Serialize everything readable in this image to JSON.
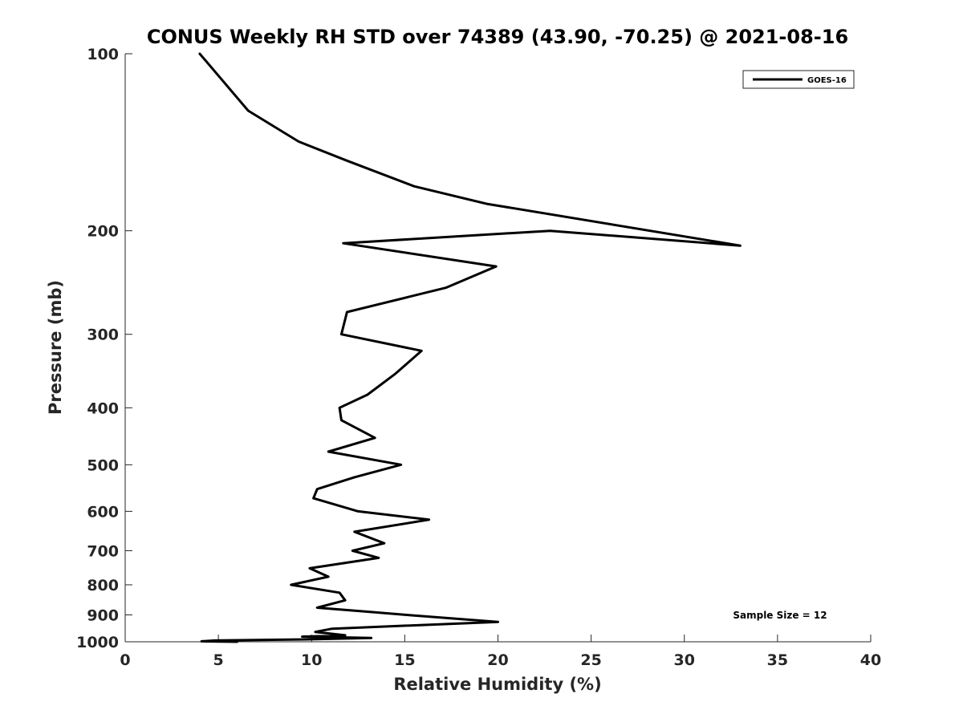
{
  "chart_data": {
    "type": "line",
    "title": "CONUS Weekly RH STD over 74389 (43.90, -70.25) @ 2021-08-16",
    "xlabel": "Relative Humidity (%)",
    "ylabel": "Pressure (mb)",
    "xlim": [
      0,
      40
    ],
    "ylim": [
      100,
      1000
    ],
    "y_scale": "log",
    "y_reversed": true,
    "x_ticks": [
      "0",
      "5",
      "10",
      "15",
      "20",
      "25",
      "30",
      "35",
      "40"
    ],
    "y_ticks": [
      "100",
      "200",
      "300",
      "400",
      "500",
      "600",
      "700",
      "800",
      "900",
      "1000"
    ],
    "grid": false,
    "legend_position": "top-right",
    "series": [
      {
        "name": "GOES-16",
        "color": "#000000",
        "points": [
          [
            4.0,
            100
          ],
          [
            6.6,
            125
          ],
          [
            9.3,
            141
          ],
          [
            11.9,
            152
          ],
          [
            15.5,
            168
          ],
          [
            19.4,
            180
          ],
          [
            33.0,
            212
          ],
          [
            22.8,
            200
          ],
          [
            11.7,
            210
          ],
          [
            19.9,
            230
          ],
          [
            17.2,
            250
          ],
          [
            11.9,
            275
          ],
          [
            11.6,
            300
          ],
          [
            15.9,
            320
          ],
          [
            14.5,
            350
          ],
          [
            13.0,
            380
          ],
          [
            11.5,
            400
          ],
          [
            11.6,
            420
          ],
          [
            13.4,
            450
          ],
          [
            10.9,
            475
          ],
          [
            14.8,
            500
          ],
          [
            12.3,
            525
          ],
          [
            10.3,
            550
          ],
          [
            10.1,
            570
          ],
          [
            12.5,
            600
          ],
          [
            16.3,
            620
          ],
          [
            12.3,
            650
          ],
          [
            13.9,
            680
          ],
          [
            12.2,
            700
          ],
          [
            13.6,
            720
          ],
          [
            9.9,
            750
          ],
          [
            10.9,
            775
          ],
          [
            8.9,
            800
          ],
          [
            11.5,
            825
          ],
          [
            11.8,
            850
          ],
          [
            10.3,
            875
          ],
          [
            13.2,
            890
          ],
          [
            15.1,
            900
          ],
          [
            20.0,
            925
          ],
          [
            11.1,
            950
          ],
          [
            10.2,
            962
          ],
          [
            11.8,
            975
          ],
          [
            9.5,
            980
          ],
          [
            13.2,
            985
          ],
          [
            10.2,
            990
          ],
          [
            4.8,
            995
          ],
          [
            4.1,
            998
          ],
          [
            6.0,
            1000
          ]
        ]
      }
    ],
    "annotations": [
      "Sample Size = 12"
    ]
  }
}
